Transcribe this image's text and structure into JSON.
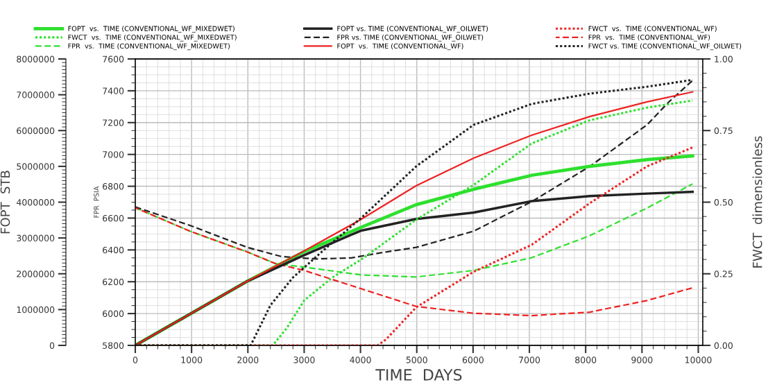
{
  "chart_data": {
    "type": "line",
    "xlabel": "TIME  DAYS",
    "ylabel": "FOPT  STB",
    "y2label": "FWCT  dimensionless",
    "y3label": "FPR  PSIA",
    "xlim": [
      0,
      10080
    ],
    "xticks": [
      0,
      1000,
      2000,
      3000,
      4000,
      5000,
      6000,
      7000,
      8000,
      9000,
      10000
    ],
    "ylim": [
      0,
      8000000
    ],
    "yticks": [
      0,
      1000000,
      2000000,
      3000000,
      4000000,
      5000000,
      6000000,
      7000000,
      8000000
    ],
    "y2lim": [
      0,
      1
    ],
    "y2ticks": [
      {
        "value": 0,
        "label": "0.00"
      },
      {
        "value": 0.25,
        "label": "0.25"
      },
      {
        "value": 0.5,
        "label": "0.50"
      },
      {
        "value": 0.75,
        "label": "0.75"
      },
      {
        "value": 1,
        "label": "1.00"
      }
    ],
    "y3lim": [
      5800,
      7600
    ],
    "y3ticks": [
      5800,
      6000,
      6200,
      6400,
      6600,
      6800,
      7000,
      7200,
      7400,
      7600
    ],
    "grid": true,
    "legend": "top",
    "series": [
      {
        "name": "FOPT  vs.  TIME (CONVENTIONAL_WF_MIXEDWET)",
        "color": "#2ee02e",
        "line_style": "solid",
        "x": [
          0,
          2000,
          3000,
          4000,
          4990,
          6010,
          7040,
          8070,
          9090,
          9900
        ],
        "values": [
          0,
          1800000,
          2620000,
          3290000,
          3930000,
          4360000,
          4750000,
          5000000,
          5190000,
          5290000
        ]
      },
      {
        "name": "FWCT  vs.  TIME (CONVENTIONAL_WF_MIXEDWET)",
        "color": "#2ee02e",
        "line_style": "dotted",
        "axis": "y2",
        "x": [
          0,
          2350,
          2440,
          2690,
          3000,
          3500,
          4030,
          4990,
          6010,
          7040,
          8070,
          9090,
          9900
        ],
        "values": [
          0,
          0,
          0.0,
          0.06,
          0.157,
          0.237,
          0.302,
          0.439,
          0.56,
          0.705,
          0.786,
          0.83,
          0.855
        ]
      },
      {
        "name": "FPR  vs.  TIME (CONVENTIONAL_WF_MIXEDWET)",
        "color": "#2ee02e",
        "line_style": "dashed",
        "axis": "y3",
        "x": [
          0,
          970,
          1990,
          2490,
          3000,
          4030,
          4990,
          6010,
          7040,
          8070,
          9090,
          9900
        ],
        "values": [
          6665,
          6518,
          6387,
          6314,
          6292,
          6242,
          6230,
          6271,
          6351,
          6489,
          6663,
          6815
        ]
      },
      {
        "name": "FOPT vs. TIME (CONVENTIONAL_WF_OILWET)",
        "color": "#222222",
        "line_style": "solid",
        "x": [
          0,
          2000,
          3000,
          4000,
          4990,
          6010,
          7040,
          8070,
          9090,
          9900
        ],
        "values": [
          0,
          1800000,
          2520000,
          3200000,
          3530000,
          3710000,
          4030000,
          4170000,
          4240000,
          4290000
        ]
      },
      {
        "name": "FPR vs. TIME (CONVENTIONAL_WF_OILWET)",
        "color": "#222222",
        "line_style": "dashed",
        "axis": "y3",
        "x": [
          0,
          970,
          1990,
          2600,
          3220,
          3840,
          4450,
          4990,
          6010,
          7040,
          8070,
          9090,
          9480,
          9900
        ],
        "values": [
          6670,
          6554,
          6416,
          6358,
          6343,
          6350,
          6387,
          6416,
          6518,
          6703,
          6924,
          7186,
          7331,
          7465
        ]
      },
      {
        "name": "FOPT  vs.  TIME (CONVENTIONAL_WF)",
        "color": "#ee2222",
        "line_style": "solid",
        "x": [
          0,
          2000,
          3000,
          4000,
          4990,
          6010,
          7040,
          8070,
          9090,
          9900
        ],
        "values": [
          0,
          1800000,
          2640000,
          3510000,
          4460000,
          5230000,
          5870000,
          6390000,
          6800000,
          7080000
        ]
      },
      {
        "name": "FWCT  vs.  TIME (CONVENTIONAL_WF)",
        "color": "#ee2222",
        "line_style": "dotted",
        "axis": "y2",
        "x": [
          0,
          4300,
          4450,
          4990,
          6010,
          7040,
          8070,
          9090,
          9900
        ],
        "values": [
          0,
          0,
          0.02,
          0.133,
          0.257,
          0.351,
          0.496,
          0.625,
          0.691
        ]
      },
      {
        "name": "FPR  vs.  TIME (CONVENTIONAL_WF)",
        "color": "#ee2222",
        "line_style": "dashed",
        "axis": "y3",
        "x": [
          0,
          970,
          1990,
          2490,
          3000,
          4030,
          4990,
          6010,
          7040,
          8070,
          9090,
          9900
        ],
        "values": [
          6665,
          6518,
          6387,
          6314,
          6271,
          6154,
          6045,
          6002,
          5987,
          6009,
          6082,
          6162
        ]
      },
      {
        "name": "FWCT vs. TIME (CONVENTIONAL_WF_OILWET)",
        "color": "#222222",
        "line_style": "dotted",
        "axis": "y2",
        "x": [
          0,
          2050,
          2400,
          2800,
          3400,
          4030,
          4990,
          6010,
          7040,
          8070,
          9090,
          9900
        ],
        "values": [
          0,
          0,
          0.14,
          0.237,
          0.342,
          0.448,
          0.625,
          0.77,
          0.843,
          0.879,
          0.903,
          0.927
        ]
      }
    ]
  }
}
